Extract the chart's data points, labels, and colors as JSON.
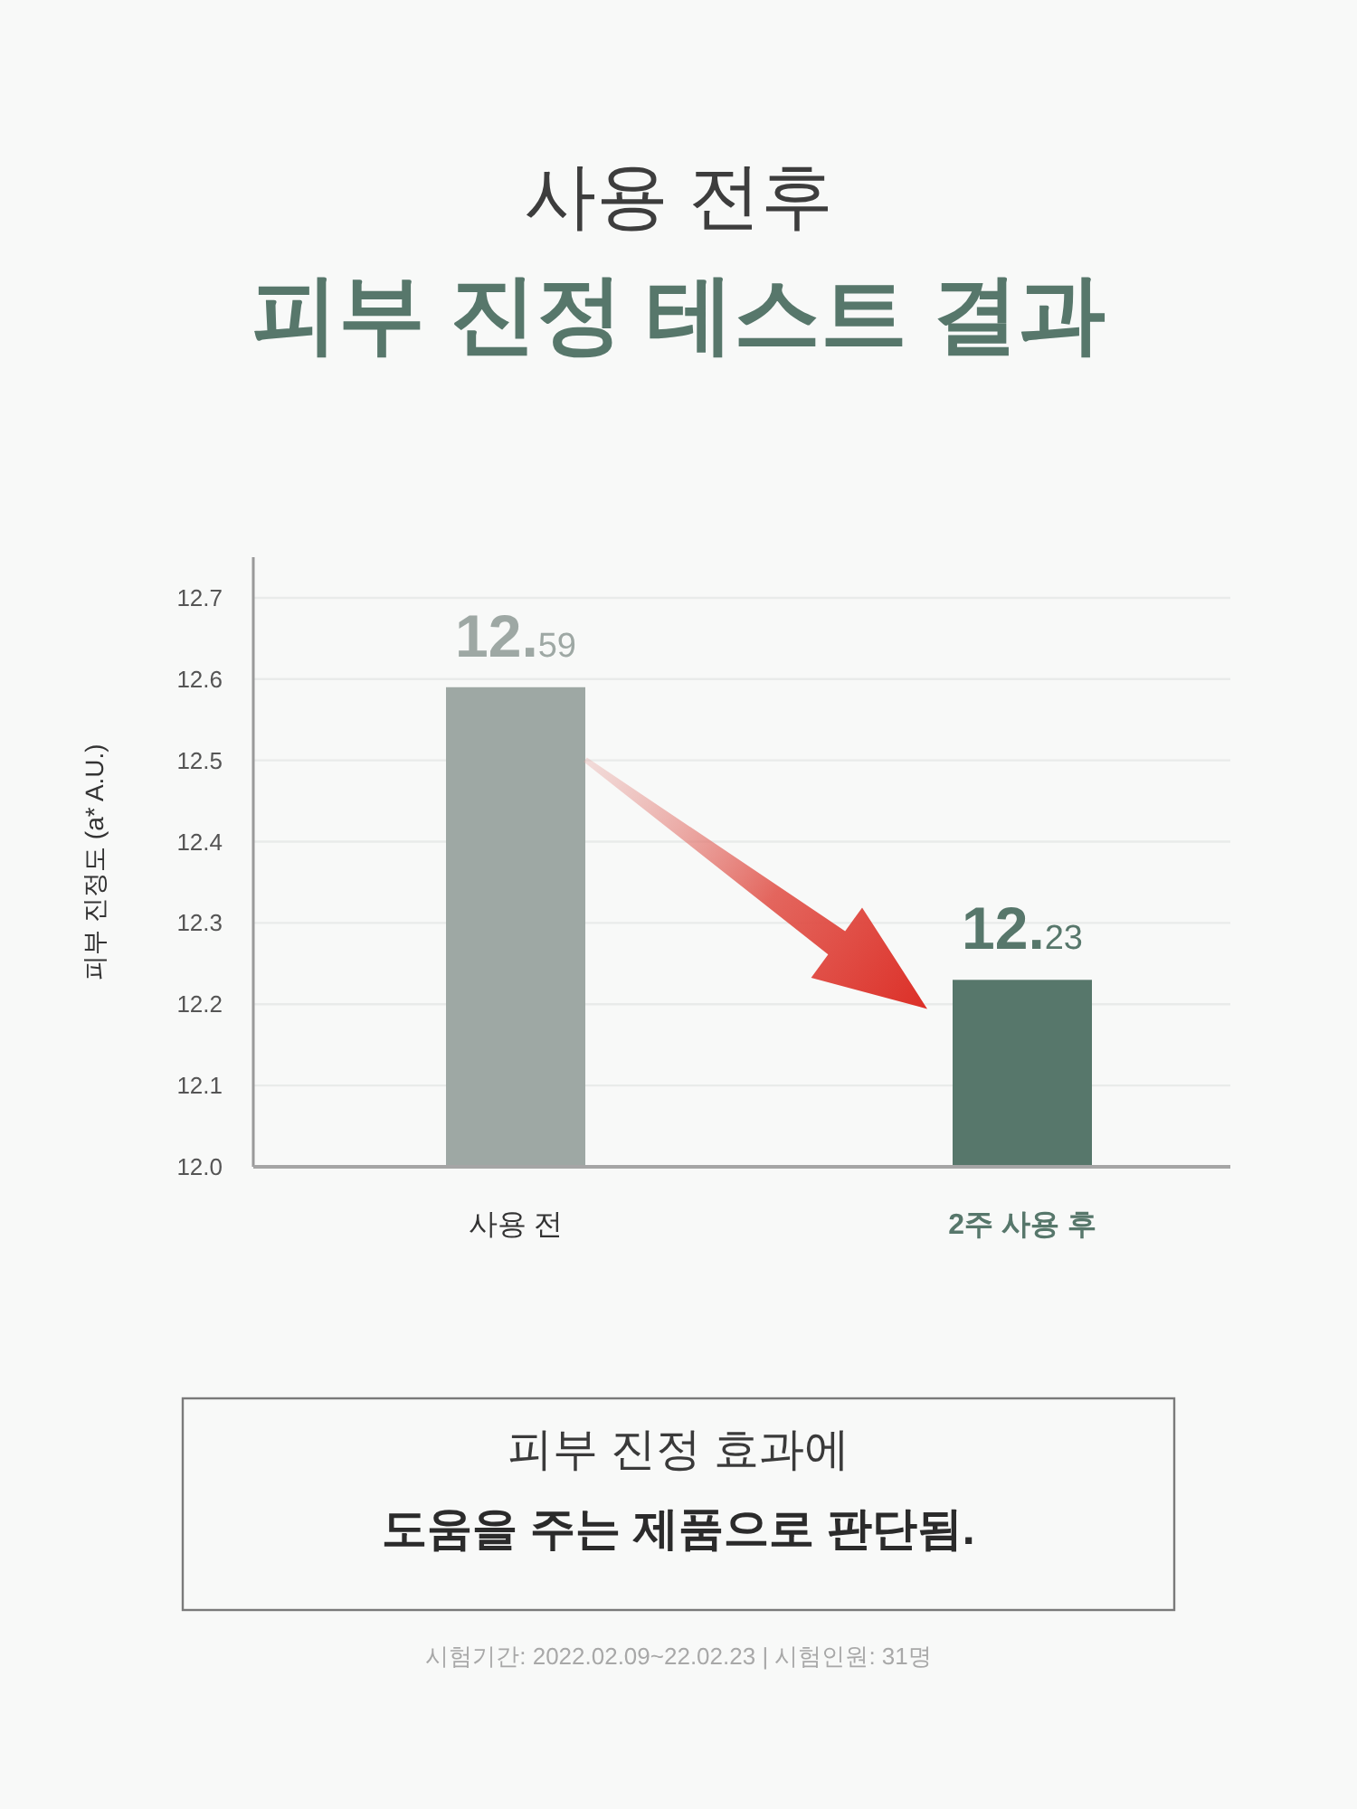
{
  "chart_data": {
    "type": "bar",
    "title": "사용 전후",
    "subtitle": "피부 진정 테스트 결과",
    "ylabel": "피부 진정도 (a* A.U.)",
    "categories": [
      "사용 전",
      "2주 사용 후"
    ],
    "values": [
      12.59,
      12.23
    ],
    "colors": [
      "#9ea8a4",
      "#57776b"
    ],
    "ylim": [
      12.0,
      12.75
    ],
    "yticks": [
      {
        "value": 12,
        "label": "12.0"
      },
      12.1,
      12.2,
      12.3,
      12.4,
      12.5,
      12.6,
      12.7
    ],
    "grid": "y",
    "data_labels": true,
    "annotations": [
      "피부 진정 효과에",
      "도움을 주는 제품으로 판단됨.",
      "시험기간: 2022.02.09~22.02.23 | 시험인원: 31명"
    ]
  }
}
